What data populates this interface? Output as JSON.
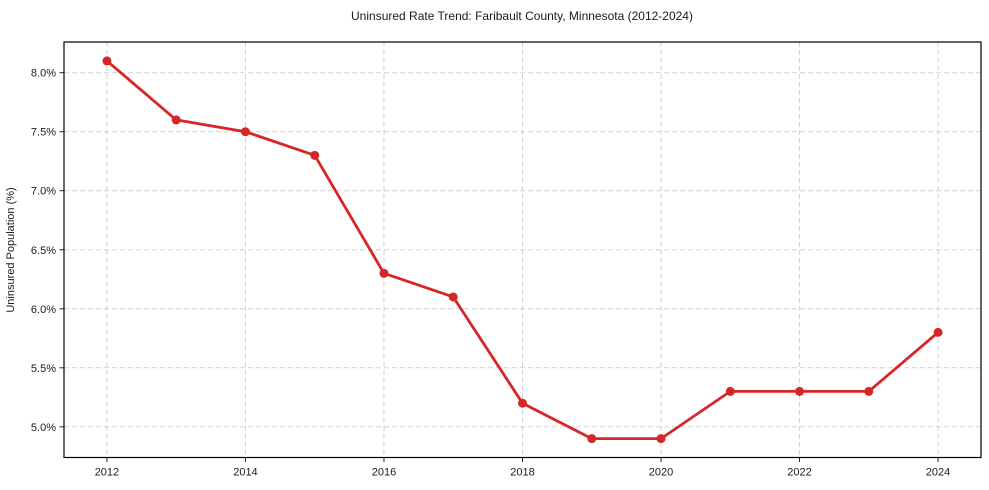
{
  "figure": {
    "background_color": "#ffffff"
  },
  "chart_data": {
    "type": "line",
    "title": "Uninsured Rate Trend: Faribault County, Minnesota (2012-2024)",
    "xlabel": "",
    "ylabel": "Uninsured Population (%)",
    "x": [
      2012,
      2013,
      2014,
      2015,
      2016,
      2017,
      2018,
      2019,
      2020,
      2021,
      2022,
      2023,
      2024
    ],
    "values": [
      8.1,
      7.6,
      7.5,
      7.3,
      6.3,
      6.1,
      5.2,
      4.9,
      4.9,
      5.3,
      5.3,
      5.3,
      5.8
    ],
    "xlim": [
      2011.38,
      2024.62
    ],
    "ylim": [
      4.74,
      8.26
    ],
    "x_ticks": [
      2012,
      2014,
      2016,
      2018,
      2020,
      2022,
      2024
    ],
    "x_tick_labels": [
      "2012",
      "2014",
      "2016",
      "2018",
      "2020",
      "2022",
      "2024"
    ],
    "y_ticks": [
      5.0,
      5.5,
      6.0,
      6.5,
      7.0,
      7.5,
      8.0
    ],
    "y_tick_labels": [
      "5.0%",
      "5.5%",
      "6.0%",
      "6.5%",
      "7.0%",
      "7.5%",
      "8.0%"
    ],
    "grid": true,
    "grid_style": "dashed",
    "legend": "none",
    "line_color": "#d62728",
    "marker": "circle",
    "grid_color": "#c9c9c9",
    "spine_color": "#000000",
    "tick_color": "#262626",
    "text_color": "#1a1a1a"
  }
}
